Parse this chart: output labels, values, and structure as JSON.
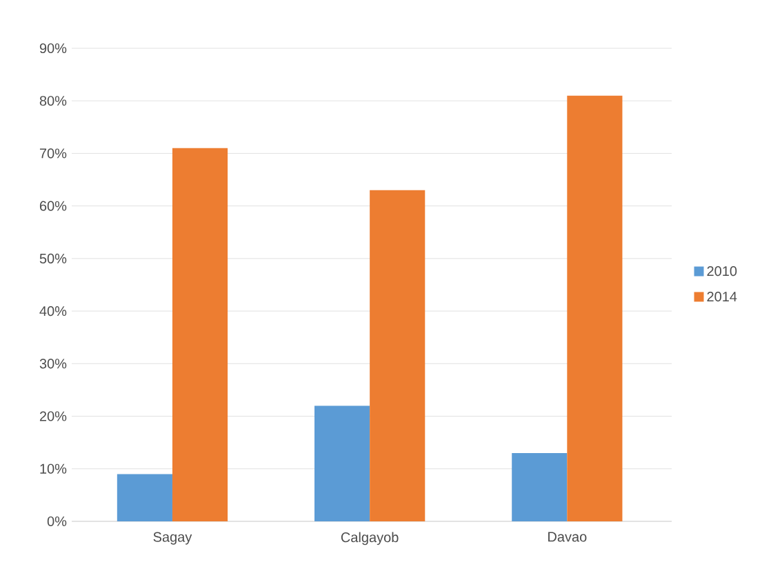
{
  "chart_data": {
    "type": "bar",
    "categories": [
      "Sagay",
      "Calgayob",
      "Davao"
    ],
    "series": [
      {
        "name": "2010",
        "color": "#5b9bd5",
        "values": [
          9,
          22,
          13
        ]
      },
      {
        "name": "2014",
        "color": "#ed7d31",
        "values": [
          71,
          63,
          81
        ]
      }
    ],
    "ylim": [
      0,
      90
    ],
    "yticks": [
      {
        "value": 0,
        "label": "0%"
      },
      {
        "value": 10,
        "label": "10%"
      },
      {
        "value": 20,
        "label": "20%"
      },
      {
        "value": 30,
        "label": "30%"
      },
      {
        "value": 40,
        "label": "40%"
      },
      {
        "value": 50,
        "label": "50%"
      },
      {
        "value": 60,
        "label": "60%"
      },
      {
        "value": 70,
        "label": "70%"
      },
      {
        "value": 80,
        "label": "80%"
      },
      {
        "value": 90,
        "label": "90%"
      }
    ],
    "grid": "y",
    "legend": "right"
  }
}
